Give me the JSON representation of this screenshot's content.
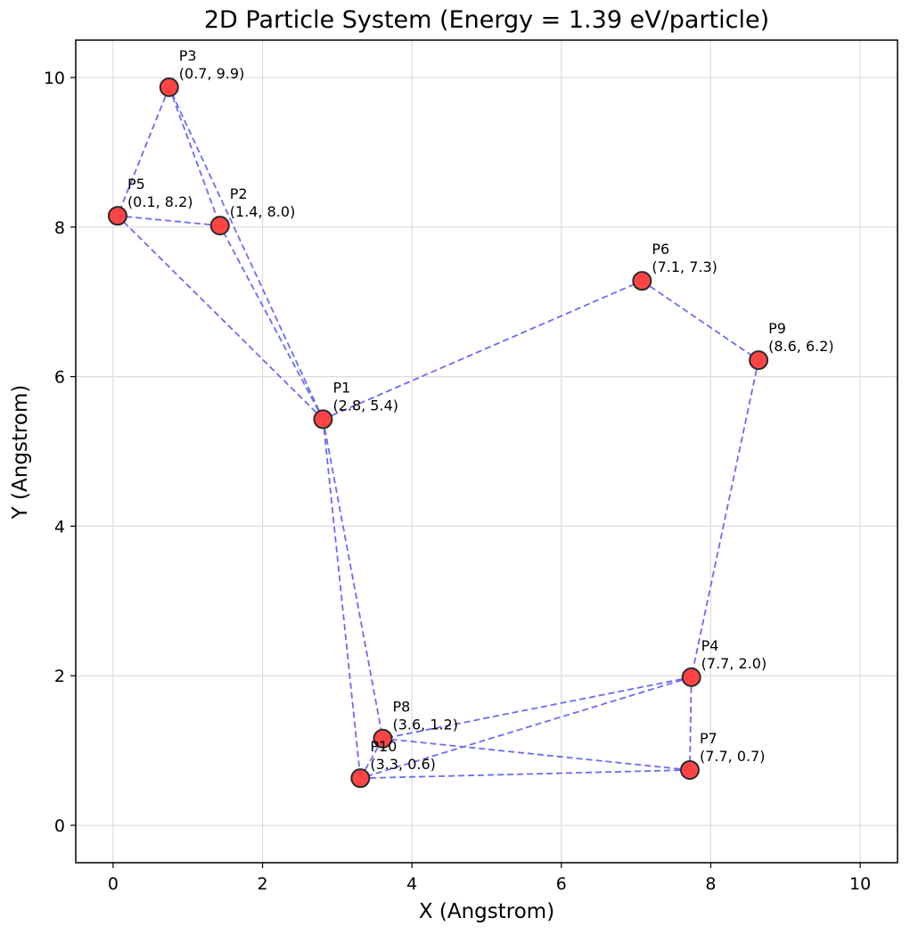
{
  "chart_data": {
    "type": "scatter",
    "title": "2D Particle System (Energy = 1.39 eV/particle)",
    "xlabel": "X (Angstrom)",
    "ylabel": "Y (Angstrom)",
    "xlim": [
      -0.5,
      10.5
    ],
    "ylim": [
      -0.5,
      10.5
    ],
    "xticks": [
      0,
      2,
      4,
      6,
      8,
      10
    ],
    "yticks": [
      0,
      2,
      4,
      6,
      8,
      10
    ],
    "grid": true,
    "legend": "none",
    "colors": {
      "marker_fill": "#ff3b3b",
      "marker_edge": "#2a2a2a",
      "bond_line": "#6b6bf5",
      "grid": "#dcdcdc"
    },
    "points": [
      {
        "name": "P1",
        "coords": "(2.8, 5.4)",
        "x": 2.81,
        "y": 5.43
      },
      {
        "name": "P2",
        "coords": "(1.4, 8.0)",
        "x": 1.43,
        "y": 8.02
      },
      {
        "name": "P3",
        "coords": "(0.7, 9.9)",
        "x": 0.75,
        "y": 9.87
      },
      {
        "name": "P4",
        "coords": "(7.7, 2.0)",
        "x": 7.74,
        "y": 1.98
      },
      {
        "name": "P5",
        "coords": "(0.1, 8.2)",
        "x": 0.06,
        "y": 8.15
      },
      {
        "name": "P6",
        "coords": "(7.1, 7.3)",
        "x": 7.08,
        "y": 7.28
      },
      {
        "name": "P7",
        "coords": "(7.7, 0.7)",
        "x": 7.72,
        "y": 0.74
      },
      {
        "name": "P8",
        "coords": "(3.6, 1.2)",
        "x": 3.61,
        "y": 1.16
      },
      {
        "name": "P9",
        "coords": "(8.6, 6.2)",
        "x": 8.64,
        "y": 6.22
      },
      {
        "name": "P10",
        "coords": "(3.3, 0.6)",
        "x": 3.31,
        "y": 0.63
      }
    ],
    "bonds": [
      [
        "P1",
        "P2"
      ],
      [
        "P1",
        "P3"
      ],
      [
        "P1",
        "P5"
      ],
      [
        "P1",
        "P6"
      ],
      [
        "P1",
        "P8"
      ],
      [
        "P1",
        "P10"
      ],
      [
        "P2",
        "P5"
      ],
      [
        "P3",
        "P5"
      ],
      [
        "P3",
        "P2"
      ],
      [
        "P6",
        "P9"
      ],
      [
        "P9",
        "P4"
      ],
      [
        "P4",
        "P7"
      ],
      [
        "P4",
        "P8"
      ],
      [
        "P4",
        "P10"
      ],
      [
        "P7",
        "P8"
      ],
      [
        "P7",
        "P10"
      ],
      [
        "P8",
        "P10"
      ]
    ]
  }
}
